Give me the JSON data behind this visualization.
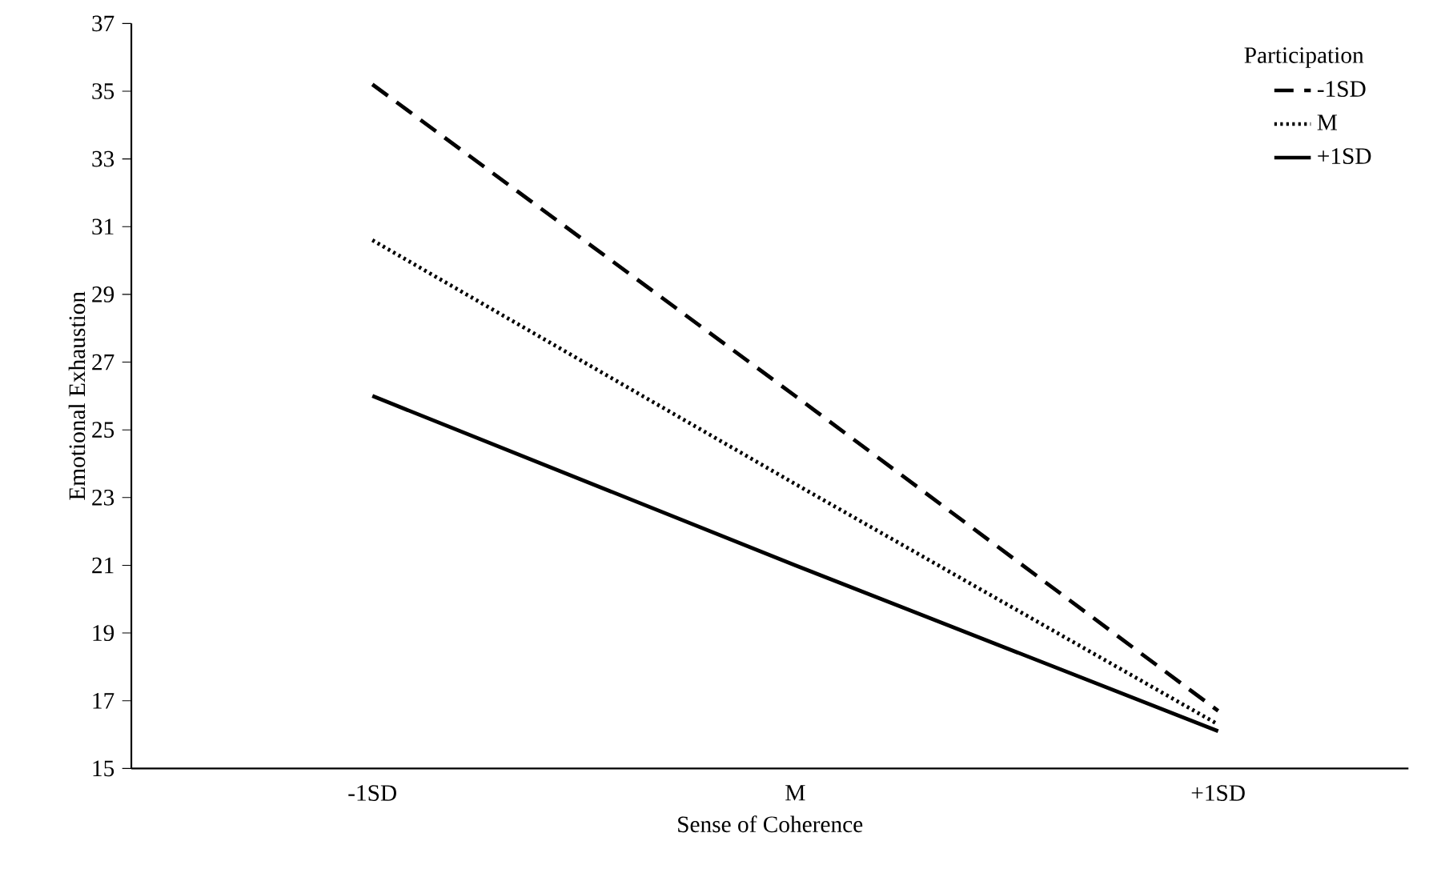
{
  "chart_data": {
    "type": "line",
    "xlabel": "Sense of Coherence",
    "ylabel": "Emotional Exhaustion",
    "legend_title": "Participation",
    "categories": [
      "-1SD",
      "M",
      "+1SD"
    ],
    "series": [
      {
        "name": "-1SD",
        "color": "#000000",
        "line_style": "dashed",
        "values": [
          35.2,
          26.0,
          16.7
        ]
      },
      {
        "name": "M",
        "color": "#000000",
        "line_style": "dotted",
        "values": [
          30.6,
          23.4,
          16.3
        ]
      },
      {
        "name": "+1SD",
        "color": "#000000",
        "line_style": "solid",
        "values": [
          26.0,
          21.0,
          16.1
        ]
      }
    ],
    "ylim": [
      15,
      37
    ],
    "yticks": [
      15,
      17,
      19,
      21,
      23,
      25,
      27,
      29,
      31,
      33,
      35,
      37
    ],
    "grid": false,
    "legend": "top right",
    "marker": "none"
  }
}
